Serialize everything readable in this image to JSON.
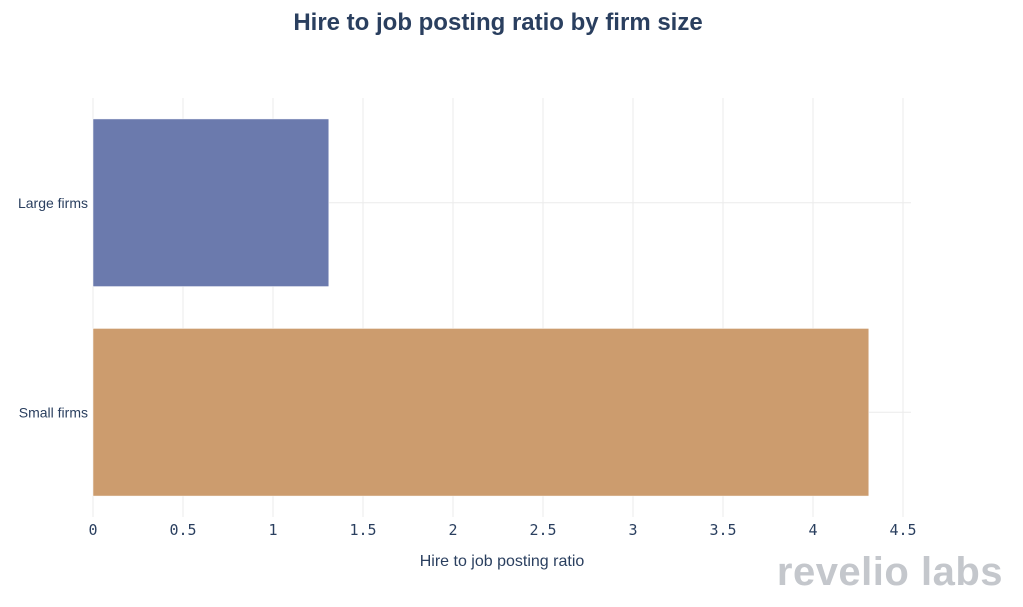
{
  "chart_data": {
    "type": "bar",
    "orientation": "horizontal",
    "title": "Hire to job posting ratio by firm size",
    "xlabel": "Hire to job posting ratio",
    "ylabel": "",
    "categories": [
      "Large firms",
      "Small firms"
    ],
    "values": [
      1.31,
      4.31
    ],
    "colors": [
      "#6b7aad",
      "#cc9c6e"
    ],
    "xlim": [
      0,
      4.5
    ],
    "xticks": [
      0,
      0.5,
      1,
      1.5,
      2,
      2.5,
      3,
      3.5,
      4,
      4.5
    ],
    "xtick_labels": [
      "0",
      "0.5",
      "1",
      "1.5",
      "2",
      "2.5",
      "3",
      "3.5",
      "4",
      "4.5"
    ],
    "grid": true,
    "legend": "none"
  },
  "branding": {
    "watermark": "revelio labs"
  }
}
